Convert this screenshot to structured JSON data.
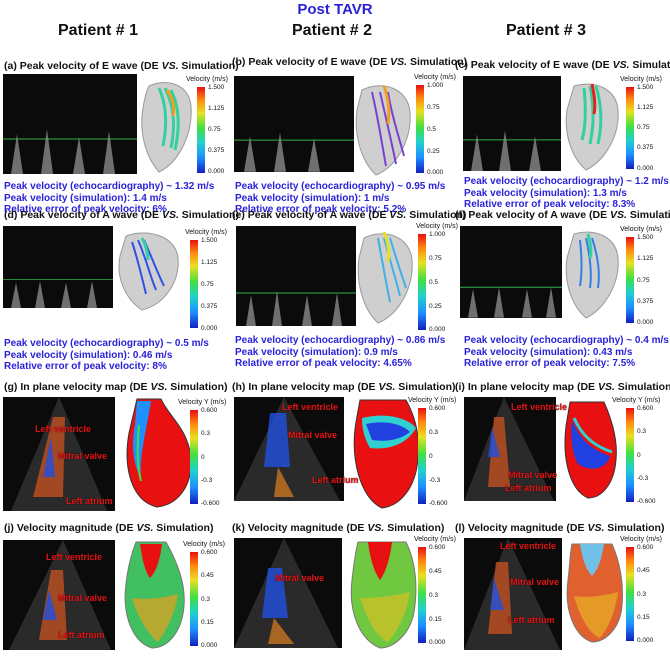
{
  "header": {
    "title": "Post TAVR"
  },
  "patients": [
    "Patient # 1",
    "Patient # 2",
    "Patient # 3"
  ],
  "rows": {
    "e_wave": [
      {
        "title_pre": "(a)  Peak velocity of E wave (DE ",
        "title_vs": "VS.",
        "title_post": " Simulation)",
        "cbar_title": "Velocity (m/s)",
        "ticks": [
          "1.500",
          "1.125",
          "0.75",
          "0.375",
          "0.000"
        ],
        "stats": [
          "Peak velocity (echocardiography) ~ 1.32 m/s",
          "Peak velocity (simulation): 1.4 m/s",
          "Relative error of peak velocity: 6%"
        ]
      },
      {
        "title_pre": "(b)  Peak velocity of E wave (DE ",
        "title_vs": "VS.",
        "title_post": " Simulation)",
        "cbar_title": "Velocity (m/s)",
        "ticks": [
          "1.000",
          "0.75",
          "0.5",
          "0.25",
          "0.000"
        ],
        "stats": [
          "Peak velocity (echocardiography) ~ 0.95 m/s",
          "Peak velocity (simulation): 1 m/s",
          "Relative error of peak velocity: 5.2%"
        ]
      },
      {
        "title_pre": "(c)  Peak velocity of E wave (DE ",
        "title_vs": "VS.",
        "title_post": " Simulation)",
        "cbar_title": "Velocity (m/s)",
        "ticks": [
          "1.500",
          "1.125",
          "0.75",
          "0.375",
          "0.000"
        ],
        "stats": [
          "Peak velocity (echocardiography) ~ 1.2 m/s",
          "Peak velocity (simulation): 1.3 m/s",
          "Relative error of peak velocity: 8.3%"
        ]
      }
    ],
    "a_wave": [
      {
        "title_pre": "(d)  Peak velocity of A wave (DE ",
        "title_vs": "VS.",
        "title_post": " Simulation)",
        "cbar_title": "Velocity (m/s)",
        "ticks": [
          "1.500",
          "1.125",
          "0.75",
          "0.375",
          "0.000"
        ],
        "stats": [
          "Peak velocity (echocardiography) ~ 0.5 m/s",
          "Peak velocity (simulation): 0.46 m/s",
          "Relative error of peak velocity: 8%"
        ]
      },
      {
        "title_pre": "(e)  Peak velocity of A wave (DE ",
        "title_vs": "VS.",
        "title_post": " Simulation)",
        "cbar_title": "Velocity (m/s)",
        "ticks": [
          "1.000",
          "0.75",
          "0.5",
          "0.25",
          "0.000"
        ],
        "stats": [
          "Peak velocity (echocardiography) ~ 0.86 m/s",
          "Peak velocity (simulation): 0.9 m/s",
          "Relative error of peak velocity: 4.65%"
        ]
      },
      {
        "title_pre": "(f)  Peak velocity of A wave (DE ",
        "title_vs": "VS.",
        "title_post": " Simulation)",
        "cbar_title": "Velocity (m/s)",
        "ticks": [
          "1.500",
          "1.125",
          "0.75",
          "0.375",
          "0.000"
        ],
        "stats": [
          "Peak velocity (echocardiography) ~ 0.4 m/s",
          "Peak velocity (simulation): 0.43 m/s",
          "Relative error of peak velocity: 7.5%"
        ]
      }
    ],
    "inplane": [
      {
        "title_pre": "(g)  In plane velocity map (DE ",
        "title_vs": "VS.",
        "title_post": " Simulation)",
        "cbar_title": "Velocity Y (m/s)",
        "ticks": [
          "0.600",
          "0.3",
          "0",
          "-0.3",
          "-0.600"
        ],
        "labels": [
          "Left ventricle",
          "Mitral valve",
          "Left atrium"
        ]
      },
      {
        "title_pre": "(h)  In plane velocity map (DE ",
        "title_vs": "VS.",
        "title_post": " Simulation)",
        "cbar_title": "Velocity Y (m/s)",
        "ticks": [
          "0.600",
          "0.3",
          "0",
          "-0.3",
          "-0.600"
        ],
        "labels": [
          "Left ventricle",
          "Mitral valve",
          "Left atrium"
        ]
      },
      {
        "title_pre": "(i)  In plane velocity map (DE ",
        "title_vs": "VS.",
        "title_post": " Simulation)",
        "cbar_title": "Velocity Y (m/s)",
        "ticks": [
          "0.600",
          "0.3",
          "0",
          "-0.3",
          "-0.600"
        ],
        "labels": [
          "Left ventricle",
          "Mitral valve",
          "Left atrium"
        ]
      }
    ],
    "magnitude": [
      {
        "title_pre": "(j)  Velocity magnitude (DE ",
        "title_vs": "VS.",
        "title_post": " Simulation)",
        "cbar_title": "Velocity (m/s)",
        "ticks": [
          "0.600",
          "0.45",
          "0.3",
          "0.15",
          "0.000"
        ],
        "labels": [
          "Left ventricle",
          "Mitral valve",
          "Left atrium"
        ]
      },
      {
        "title_pre": "(k)  Velocity magnitude (DE ",
        "title_vs": "VS.",
        "title_post": " Simulation)",
        "cbar_title": "Velocity (m/s)",
        "ticks": [
          "0.600",
          "0.45",
          "0.3",
          "0.15",
          "0.000"
        ],
        "labels": [
          "Mitral valve"
        ]
      },
      {
        "title_pre": "(l)  Velocity magnitude (DE ",
        "title_vs": "VS.",
        "title_post": " Simulation)",
        "cbar_title": "Velocity (m/s)",
        "ticks": [
          "0.600",
          "0.45",
          "0.3",
          "0.15",
          "0.000"
        ],
        "labels": [
          "Left ventricle",
          "Mitral valve",
          "Left atrium"
        ]
      }
    ]
  }
}
